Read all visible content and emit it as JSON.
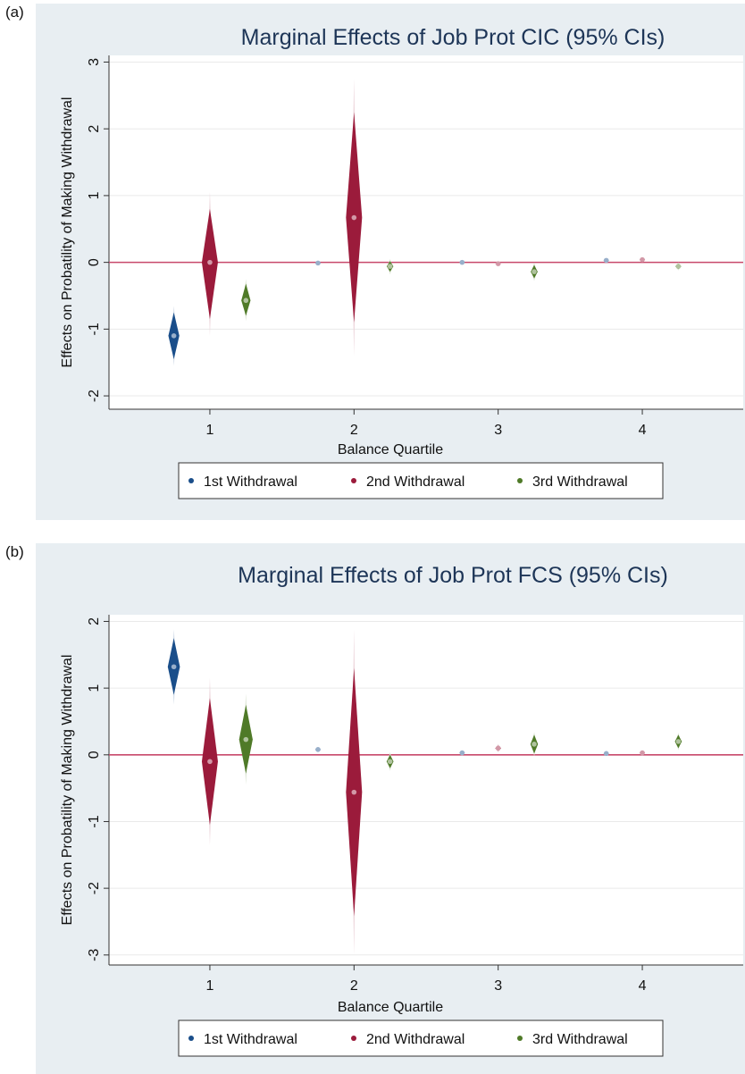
{
  "panels": [
    {
      "label": "(a)"
    },
    {
      "label": "(b)"
    }
  ],
  "chart_data": [
    {
      "type": "scatter",
      "title": "Marginal Effects of Job Prot CIC (95% CIs)",
      "xlabel": "Balance Quartile",
      "ylabel": "Effects on Probatility of Making Withdrawal",
      "x_ticks": [
        1,
        2,
        3,
        4
      ],
      "y_ticks": [
        3,
        2,
        1,
        0,
        -1,
        -2
      ],
      "xlim": [
        0.3,
        4.7
      ],
      "ylim": [
        -2.2,
        3.1
      ],
      "reference_line": 0,
      "grid": true,
      "legend_position": "bottom",
      "series": [
        {
          "name": "1st Withdrawal",
          "color": "#1a4e8a",
          "points": [
            {
              "x": 0.75,
              "y": -1.1,
              "ci_inner": [
                -1.45,
                -0.75
              ],
              "ci_outer": [
                -1.55,
                -0.65
              ]
            },
            {
              "x": 1.75,
              "y": -0.01,
              "ci_inner": [
                -0.03,
                0.01
              ],
              "ci_outer": [
                -0.04,
                0.02
              ]
            },
            {
              "x": 2.75,
              "y": 0.0,
              "ci_inner": [
                -0.02,
                0.02
              ],
              "ci_outer": [
                -0.03,
                0.03
              ]
            },
            {
              "x": 3.75,
              "y": 0.03,
              "ci_inner": [
                0.01,
                0.05
              ],
              "ci_outer": [
                0.0,
                0.06
              ]
            }
          ]
        },
        {
          "name": "2nd Withdrawal",
          "color": "#9b1b3b",
          "points": [
            {
              "x": 1.0,
              "y": 0.0,
              "ci_inner": [
                -0.85,
                0.8
              ],
              "ci_outer": [
                -1.1,
                1.05
              ]
            },
            {
              "x": 2.0,
              "y": 0.67,
              "ci_inner": [
                -0.9,
                2.25
              ],
              "ci_outer": [
                -1.4,
                2.75
              ]
            },
            {
              "x": 3.0,
              "y": -0.02,
              "ci_inner": [
                -0.04,
                0.0
              ],
              "ci_outer": [
                -0.05,
                0.01
              ]
            },
            {
              "x": 4.0,
              "y": 0.04,
              "ci_inner": [
                0.02,
                0.06
              ],
              "ci_outer": [
                0.01,
                0.07
              ]
            }
          ]
        },
        {
          "name": "3rd Withdrawal",
          "color": "#4f7a28",
          "points": [
            {
              "x": 1.25,
              "y": -0.57,
              "ci_inner": [
                -0.8,
                -0.32
              ],
              "ci_outer": [
                -0.88,
                -0.25
              ]
            },
            {
              "x": 2.25,
              "y": -0.06,
              "ci_inner": [
                -0.14,
                0.02
              ],
              "ci_outer": [
                -0.18,
                0.05
              ]
            },
            {
              "x": 3.25,
              "y": -0.14,
              "ci_inner": [
                -0.24,
                -0.04
              ],
              "ci_outer": [
                -0.28,
                0.0
              ]
            },
            {
              "x": 4.25,
              "y": -0.06,
              "ci_inner": [
                -0.1,
                -0.02
              ],
              "ci_outer": [
                -0.12,
                0.0
              ]
            }
          ]
        }
      ]
    },
    {
      "type": "scatter",
      "title": "Marginal Effects of Job Prot FCS (95% CIs)",
      "xlabel": "Balance Quartile",
      "ylabel": "Effects on Probatility of Making Withdrawal",
      "x_ticks": [
        1,
        2,
        3,
        4
      ],
      "y_ticks": [
        2,
        1,
        0,
        -1,
        -2,
        -3
      ],
      "xlim": [
        0.3,
        4.7
      ],
      "ylim": [
        -3.15,
        2.1
      ],
      "reference_line": 0,
      "grid": true,
      "legend_position": "bottom",
      "series": [
        {
          "name": "1st Withdrawal",
          "color": "#1a4e8a",
          "points": [
            {
              "x": 0.75,
              "y": 1.32,
              "ci_inner": [
                0.9,
                1.75
              ],
              "ci_outer": [
                0.75,
                1.88
              ]
            },
            {
              "x": 1.75,
              "y": 0.08,
              "ci_inner": [
                0.05,
                0.1
              ],
              "ci_outer": [
                0.04,
                0.11
              ]
            },
            {
              "x": 2.75,
              "y": 0.03,
              "ci_inner": [
                0.01,
                0.05
              ],
              "ci_outer": [
                0.0,
                0.06
              ]
            },
            {
              "x": 3.75,
              "y": 0.02,
              "ci_inner": [
                0.0,
                0.04
              ],
              "ci_outer": [
                -0.01,
                0.05
              ]
            }
          ]
        },
        {
          "name": "2nd Withdrawal",
          "color": "#9b1b3b",
          "points": [
            {
              "x": 1.0,
              "y": -0.1,
              "ci_inner": [
                -1.05,
                0.85
              ],
              "ci_outer": [
                -1.35,
                1.15
              ]
            },
            {
              "x": 2.0,
              "y": -0.56,
              "ci_inner": [
                -2.42,
                1.3
              ],
              "ci_outer": [
                -3.0,
                1.88
              ]
            },
            {
              "x": 3.0,
              "y": 0.1,
              "ci_inner": [
                0.06,
                0.14
              ],
              "ci_outer": [
                0.04,
                0.16
              ]
            },
            {
              "x": 4.0,
              "y": 0.03,
              "ci_inner": [
                0.01,
                0.05
              ],
              "ci_outer": [
                0.0,
                0.06
              ]
            }
          ]
        },
        {
          "name": "3rd Withdrawal",
          "color": "#4f7a28",
          "points": [
            {
              "x": 1.25,
              "y": 0.23,
              "ci_inner": [
                -0.28,
                0.75
              ],
              "ci_outer": [
                -0.45,
                0.92
              ]
            },
            {
              "x": 2.25,
              "y": -0.1,
              "ci_inner": [
                -0.2,
                0.0
              ],
              "ci_outer": [
                -0.24,
                0.04
              ]
            },
            {
              "x": 3.25,
              "y": 0.16,
              "ci_inner": [
                0.02,
                0.3
              ],
              "ci_outer": [
                -0.02,
                0.34
              ]
            },
            {
              "x": 4.25,
              "y": 0.2,
              "ci_inner": [
                0.1,
                0.3
              ],
              "ci_outer": [
                0.07,
                0.33
              ]
            }
          ]
        }
      ]
    }
  ]
}
